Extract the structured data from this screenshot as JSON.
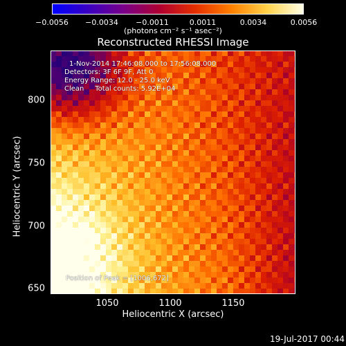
{
  "colorbar": {
    "ticks": [
      "−0.0056",
      "−0.0034",
      "−0.0011",
      "0.0011",
      "0.0034",
      "0.0056"
    ],
    "units": "(photons cm⁻² s⁻¹ asec⁻²)",
    "colors": [
      "#0000ff",
      "#3a00c0",
      "#7a0088",
      "#b00030",
      "#e63000",
      "#ff8000",
      "#ffd24a",
      "#ffffe6"
    ]
  },
  "title": "Reconstructed RHESSI Image",
  "info": {
    "time_range": "1-Nov-2014 17:46:08.000 to 17:56:08.000",
    "detectors": "Detectors: 3F 6F 9F, Att 0",
    "energy": "Energy Range: 12.0 - 25.0 keV",
    "clean": "Clean     Total counts: 5.92E+04",
    "peak": "Position of Peak = [1006,672]"
  },
  "axes": {
    "xlabel": "Heliocentric X (arcsec)",
    "ylabel": "Heliocentric Y (arcsec)",
    "xticks": [
      "1050",
      "1100",
      "1150"
    ],
    "yticks": [
      "800",
      "750",
      "700",
      "650"
    ]
  },
  "timestamp": "19-Jul-2017 00:44"
}
